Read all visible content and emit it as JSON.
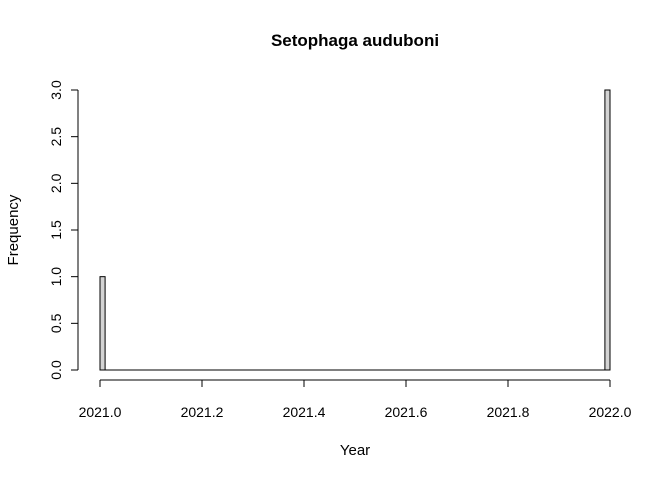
{
  "chart_data": {
    "type": "bar",
    "title": "Setophaga auduboni",
    "xlabel": "Year",
    "ylabel": "Frequency",
    "bin_width": 0.01,
    "xlim": [
      2021.0,
      2022.0
    ],
    "ylim": [
      0,
      3
    ],
    "x_ticks": [
      "2021.0",
      "2021.2",
      "2021.4",
      "2021.6",
      "2021.8",
      "2022.0"
    ],
    "y_ticks": [
      "0.0",
      "0.5",
      "1.0",
      "1.5",
      "2.0",
      "2.5",
      "3.0"
    ],
    "bins": [
      {
        "start": 2021.0,
        "end": 2021.01,
        "count": 1
      },
      {
        "start": 2021.99,
        "end": 2022.0,
        "count": 3
      }
    ],
    "bar_fill": "#d3d3d3",
    "bar_stroke": "#000000",
    "grid": false
  }
}
